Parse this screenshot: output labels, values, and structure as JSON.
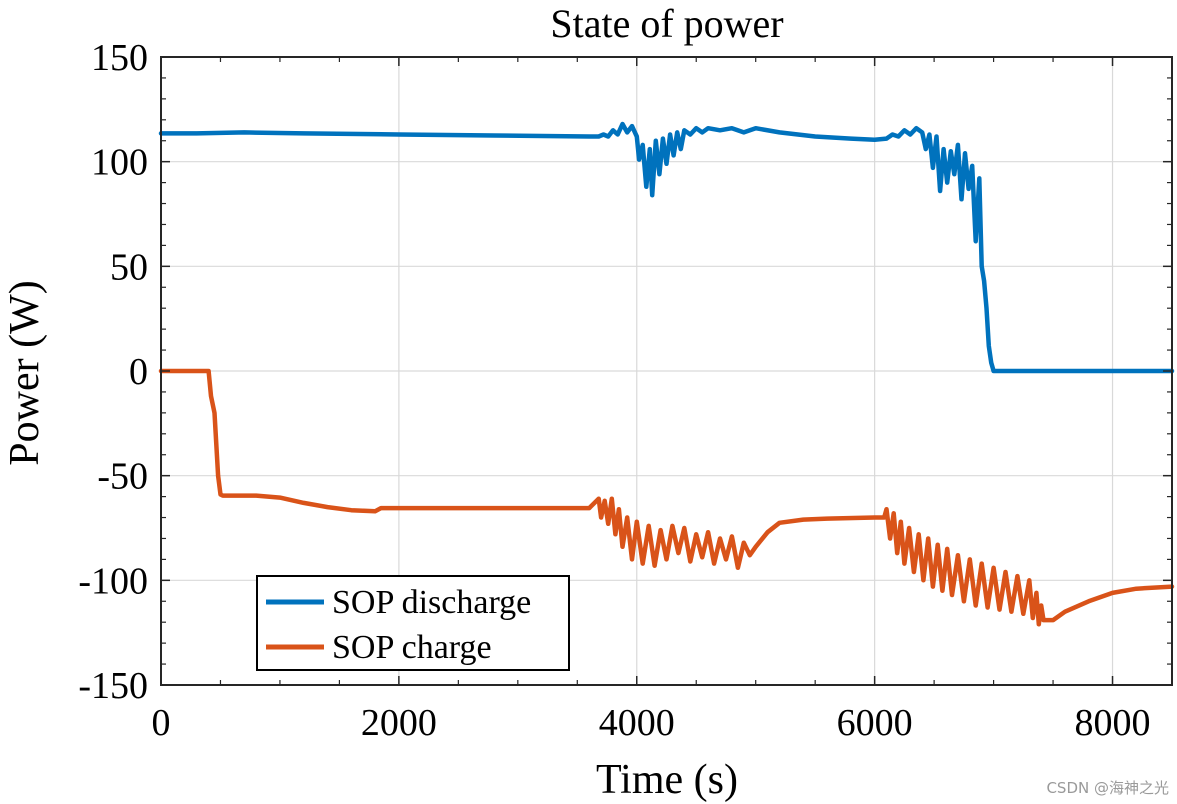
{
  "chart_data": {
    "type": "line",
    "title": "State of power",
    "xlabel": "Time (s)",
    "ylabel": "Power (W)",
    "xlim": [
      0,
      8500
    ],
    "ylim": [
      -150,
      150
    ],
    "xticks": [
      0,
      2000,
      4000,
      6000,
      8000
    ],
    "yticks": [
      -150,
      -100,
      -50,
      0,
      50,
      100,
      150
    ],
    "grid": true,
    "legend_position": "bottom-left",
    "series": [
      {
        "name": "SOP discharge",
        "color": "#0072BD",
        "x": [
          0,
          300,
          700,
          1200,
          2000,
          2800,
          3600,
          3680,
          3720,
          3760,
          3800,
          3840,
          3880,
          3920,
          3960,
          4000,
          4020,
          4050,
          4080,
          4110,
          4130,
          4160,
          4190,
          4220,
          4250,
          4280,
          4310,
          4340,
          4370,
          4400,
          4450,
          4500,
          4550,
          4600,
          4700,
          4800,
          4900,
          5000,
          5200,
          5500,
          5800,
          6000,
          6100,
          6150,
          6200,
          6250,
          6300,
          6350,
          6400,
          6430,
          6460,
          6490,
          6520,
          6550,
          6580,
          6610,
          6640,
          6670,
          6700,
          6730,
          6760,
          6790,
          6820,
          6850,
          6880,
          6900,
          6920,
          6940,
          6960,
          6980,
          7000,
          7100,
          7500,
          8000,
          8500
        ],
        "y": [
          113.5,
          113.5,
          114,
          113.5,
          113,
          112.5,
          112,
          112,
          113,
          112,
          115,
          113,
          118,
          114,
          117,
          112,
          101,
          108,
          88,
          106,
          84,
          110,
          94,
          111,
          99,
          113,
          103,
          114,
          106,
          115,
          113,
          116,
          114,
          116,
          115,
          116,
          114,
          116,
          114,
          112,
          111,
          110.5,
          111,
          113,
          112,
          115,
          113,
          116,
          114,
          106,
          113,
          97,
          112,
          86,
          106,
          90,
          105,
          94,
          108,
          82,
          104,
          87,
          98,
          62,
          92,
          50,
          43,
          30,
          12,
          4,
          0,
          0,
          0,
          0,
          0
        ]
      },
      {
        "name": "SOP charge",
        "color": "#D95319",
        "x": [
          0,
          400,
          420,
          450,
          480,
          500,
          520,
          800,
          1000,
          1200,
          1400,
          1600,
          1800,
          1850,
          2000,
          2500,
          3000,
          3600,
          3680,
          3700,
          3730,
          3760,
          3790,
          3820,
          3850,
          3880,
          3920,
          3960,
          4000,
          4050,
          4100,
          4150,
          4200,
          4250,
          4300,
          4350,
          4400,
          4450,
          4500,
          4550,
          4600,
          4650,
          4700,
          4750,
          4800,
          4850,
          4900,
          4950,
          5000,
          5100,
          5200,
          5400,
          5600,
          6000,
          6080,
          6100,
          6130,
          6160,
          6190,
          6220,
          6250,
          6290,
          6330,
          6370,
          6410,
          6450,
          6490,
          6530,
          6570,
          6610,
          6650,
          6700,
          6750,
          6800,
          6850,
          6900,
          6950,
          7000,
          7050,
          7100,
          7150,
          7200,
          7250,
          7300,
          7330,
          7360,
          7380,
          7400,
          7420,
          7500,
          7600,
          7800,
          8000,
          8200,
          8500
        ],
        "y": [
          0,
          0,
          -12,
          -20,
          -50,
          -59,
          -59.5,
          -59.5,
          -60.5,
          -63,
          -65,
          -66.5,
          -67,
          -65.5,
          -65.5,
          -65.5,
          -65.5,
          -65.5,
          -61,
          -70,
          -62,
          -73,
          -61,
          -78,
          -66,
          -84,
          -70,
          -90,
          -72,
          -92,
          -74,
          -93,
          -76,
          -90,
          -74,
          -87,
          -75,
          -91,
          -78,
          -89,
          -77,
          -92,
          -80,
          -90,
          -79,
          -94,
          -82,
          -88,
          -84,
          -77,
          -72.5,
          -71,
          -70.5,
          -70,
          -70,
          -66,
          -80,
          -68,
          -87,
          -72,
          -92,
          -75,
          -96,
          -78,
          -100,
          -80,
          -103,
          -83,
          -105,
          -85,
          -107,
          -88,
          -110,
          -90,
          -112,
          -92,
          -113,
          -94,
          -114,
          -96,
          -115,
          -98,
          -116,
          -100,
          -118,
          -106,
          -121,
          -112,
          -119,
          -119,
          -115,
          -110,
          -106,
          -104,
          -103
        ]
      }
    ]
  },
  "watermark": "CSDN @海神之光"
}
